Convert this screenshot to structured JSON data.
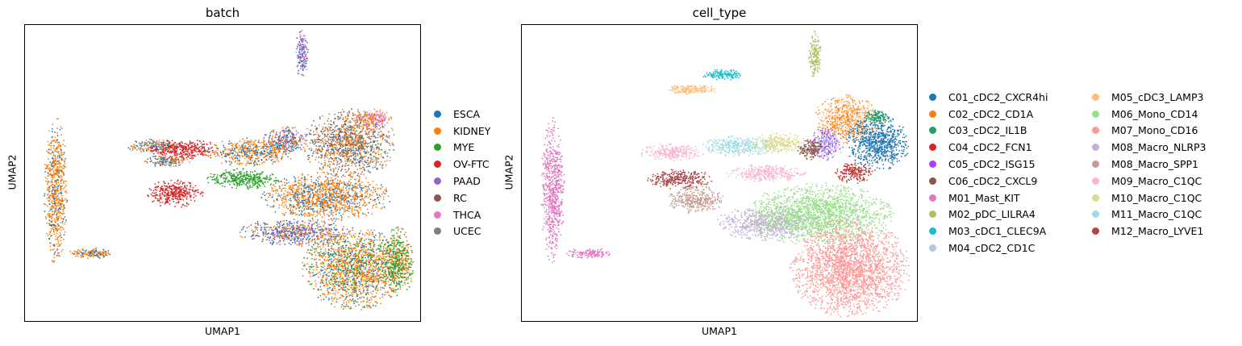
{
  "chart_data": [
    {
      "type": "scatter",
      "title": "batch",
      "xlabel": "UMAP1",
      "ylabel": "UMAP2",
      "grid": false,
      "ticks": false,
      "legend_position": "right",
      "series": [
        {
          "name": "ESCA",
          "color": "#1f77b4"
        },
        {
          "name": "KIDNEY",
          "color": "#ff7f0e"
        },
        {
          "name": "MYE",
          "color": "#2ca02c"
        },
        {
          "name": "OV-FTC",
          "color": "#d62728"
        },
        {
          "name": "PAAD",
          "color": "#9467bd"
        },
        {
          "name": "RC",
          "color": "#8c564b"
        },
        {
          "name": "THCA",
          "color": "#e377c2"
        },
        {
          "name": "UCEC",
          "color": "#7f7f7f"
        }
      ],
      "clusters": [
        {
          "cx": 0.08,
          "cy": 0.44,
          "rx": 0.025,
          "ry": 0.21,
          "colors": [
            1,
            1,
            1,
            0
          ]
        },
        {
          "cx": 0.17,
          "cy": 0.23,
          "rx": 0.05,
          "ry": 0.015,
          "colors": [
            1,
            0,
            1
          ]
        },
        {
          "cx": 0.33,
          "cy": 0.59,
          "rx": 0.06,
          "ry": 0.02,
          "colors": [
            1,
            0,
            7
          ]
        },
        {
          "cx": 0.36,
          "cy": 0.54,
          "rx": 0.05,
          "ry": 0.018,
          "colors": [
            1,
            0,
            7
          ]
        },
        {
          "cx": 0.7,
          "cy": 0.9,
          "rx": 0.014,
          "ry": 0.07,
          "colors": [
            4,
            0,
            6
          ]
        },
        {
          "cx": 0.4,
          "cy": 0.58,
          "rx": 0.08,
          "ry": 0.03,
          "colors": [
            3,
            3,
            3
          ]
        },
        {
          "cx": 0.38,
          "cy": 0.43,
          "rx": 0.06,
          "ry": 0.04,
          "colors": [
            3
          ]
        },
        {
          "cx": 0.57,
          "cy": 0.57,
          "rx": 0.1,
          "ry": 0.04,
          "colors": [
            1,
            1,
            0
          ]
        },
        {
          "cx": 0.55,
          "cy": 0.48,
          "rx": 0.08,
          "ry": 0.03,
          "colors": [
            2
          ]
        },
        {
          "cx": 0.66,
          "cy": 0.61,
          "rx": 0.05,
          "ry": 0.04,
          "colors": [
            0,
            4,
            1
          ]
        },
        {
          "cx": 0.82,
          "cy": 0.6,
          "rx": 0.1,
          "ry": 0.1,
          "colors": [
            1,
            1,
            0,
            7,
            5
          ]
        },
        {
          "cx": 0.76,
          "cy": 0.42,
          "rx": 0.14,
          "ry": 0.07,
          "colors": [
            1,
            1,
            0
          ]
        },
        {
          "cx": 0.68,
          "cy": 0.3,
          "rx": 0.12,
          "ry": 0.04,
          "colors": [
            4,
            0,
            1
          ]
        },
        {
          "cx": 0.83,
          "cy": 0.18,
          "rx": 0.11,
          "ry": 0.12,
          "colors": [
            1,
            1,
            1,
            0,
            2
          ]
        },
        {
          "cx": 0.94,
          "cy": 0.2,
          "rx": 0.04,
          "ry": 0.1,
          "colors": [
            2,
            2,
            1
          ]
        },
        {
          "cx": 0.88,
          "cy": 0.68,
          "rx": 0.04,
          "ry": 0.03,
          "colors": [
            6,
            1
          ]
        }
      ]
    },
    {
      "type": "scatter",
      "title": "cell_type",
      "xlabel": "UMAP1",
      "ylabel": "UMAP2",
      "grid": false,
      "ticks": false,
      "legend_position": "right",
      "series": [
        {
          "name": "C01_cDC2_CXCR4hi",
          "color": "#1f77b4"
        },
        {
          "name": "C02_cDC2_CD1A",
          "color": "#ff7f0e"
        },
        {
          "name": "C03_cDC2_IL1B",
          "color": "#279e68"
        },
        {
          "name": "C04_cDC2_FCN1",
          "color": "#d62728"
        },
        {
          "name": "C05_cDC2_ISG15",
          "color": "#aa40fc"
        },
        {
          "name": "C06_cDC2_CXCL9",
          "color": "#8c564b"
        },
        {
          "name": "M01_Mast_KIT",
          "color": "#e377c2"
        },
        {
          "name": "M02_pDC_LILRA4",
          "color": "#b5bd61"
        },
        {
          "name": "M03_cDC1_CLEC9A",
          "color": "#17becf"
        },
        {
          "name": "M04_cDC2_CD1C",
          "color": "#aec7e8"
        },
        {
          "name": "M05_cDC3_LAMP3",
          "color": "#ffbb78"
        },
        {
          "name": "M06_Mono_CD14",
          "color": "#98df8a"
        },
        {
          "name": "M07_Mono_CD16",
          "color": "#ff9896"
        },
        {
          "name": "M08_Macro_NLRP3",
          "color": "#c5b0d5"
        },
        {
          "name": "M08_Macro_SPP1",
          "color": "#c49c94"
        },
        {
          "name": "M09_Macro_C1QC",
          "color": "#f7b6d2"
        },
        {
          "name": "M10_Macro_C1QC",
          "color": "#dbdb8d"
        },
        {
          "name": "M11_Macro_C1QC",
          "color": "#9edae5"
        },
        {
          "name": "M12_Macro_LYVE1",
          "color": "#ad494a"
        }
      ],
      "clusters": [
        {
          "cx": 0.08,
          "cy": 0.44,
          "rx": 0.025,
          "ry": 0.21,
          "colors": [
            6
          ]
        },
        {
          "cx": 0.17,
          "cy": 0.23,
          "rx": 0.05,
          "ry": 0.015,
          "colors": [
            6
          ]
        },
        {
          "cx": 0.51,
          "cy": 0.83,
          "rx": 0.05,
          "ry": 0.015,
          "colors": [
            8
          ]
        },
        {
          "cx": 0.43,
          "cy": 0.78,
          "rx": 0.06,
          "ry": 0.015,
          "colors": [
            10
          ]
        },
        {
          "cx": 0.74,
          "cy": 0.9,
          "rx": 0.014,
          "ry": 0.07,
          "colors": [
            7
          ]
        },
        {
          "cx": 0.38,
          "cy": 0.57,
          "rx": 0.07,
          "ry": 0.025,
          "colors": [
            15
          ]
        },
        {
          "cx": 0.4,
          "cy": 0.48,
          "rx": 0.07,
          "ry": 0.03,
          "colors": [
            18
          ]
        },
        {
          "cx": 0.44,
          "cy": 0.41,
          "rx": 0.06,
          "ry": 0.04,
          "colors": [
            14
          ]
        },
        {
          "cx": 0.55,
          "cy": 0.59,
          "rx": 0.08,
          "ry": 0.03,
          "colors": [
            17
          ]
        },
        {
          "cx": 0.65,
          "cy": 0.6,
          "rx": 0.06,
          "ry": 0.03,
          "colors": [
            16
          ]
        },
        {
          "cx": 0.62,
          "cy": 0.5,
          "rx": 0.09,
          "ry": 0.025,
          "colors": [
            15
          ]
        },
        {
          "cx": 0.62,
          "cy": 0.33,
          "rx": 0.11,
          "ry": 0.05,
          "colors": [
            13
          ]
        },
        {
          "cx": 0.75,
          "cy": 0.36,
          "rx": 0.16,
          "ry": 0.09,
          "colors": [
            11
          ]
        },
        {
          "cx": 0.83,
          "cy": 0.18,
          "rx": 0.13,
          "ry": 0.14,
          "colors": [
            12
          ]
        },
        {
          "cx": 0.82,
          "cy": 0.68,
          "rx": 0.07,
          "ry": 0.07,
          "colors": [
            1,
            10
          ]
        },
        {
          "cx": 0.9,
          "cy": 0.6,
          "rx": 0.07,
          "ry": 0.08,
          "colors": [
            0
          ]
        },
        {
          "cx": 0.77,
          "cy": 0.6,
          "rx": 0.04,
          "ry": 0.05,
          "colors": [
            9,
            4
          ]
        },
        {
          "cx": 0.9,
          "cy": 0.69,
          "rx": 0.03,
          "ry": 0.02,
          "colors": [
            2
          ]
        },
        {
          "cx": 0.84,
          "cy": 0.5,
          "rx": 0.04,
          "ry": 0.03,
          "colors": [
            3,
            18
          ]
        },
        {
          "cx": 0.73,
          "cy": 0.58,
          "rx": 0.03,
          "ry": 0.03,
          "colors": [
            5
          ]
        }
      ]
    }
  ]
}
